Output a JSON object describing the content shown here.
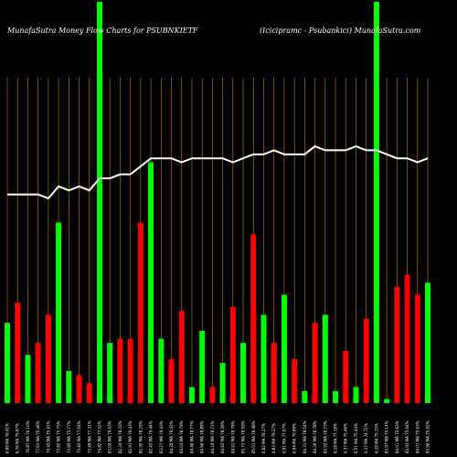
{
  "chart_data": {
    "type": "bar",
    "title_left": "MunafaSutra  Money Flow  Charts for PSUBNKIETF",
    "title_right": "(Icicipramc -  Psubankici) MunafaSutra.com",
    "colors": {
      "background": "#000000",
      "grid": "#c87f0a",
      "up": "#00ff00",
      "down": "#ff0000",
      "line": "#ffffff",
      "text": "#ffffff"
    },
    "ylim": [
      0,
      100
    ],
    "categories": [
      "6.89 MA 76.41%",
      "6.76 MA 75.87%",
      "76.87 MA 76.10%",
      "77.61 MA 75.46%",
      "74.45 MA 75.41%",
      "73.82 MA 75.75%",
      "73.95 MA 75.77%",
      "73.83 MA 77.54%",
      "73.49 MA 77.31%",
      "74.82 MA 77.52%",
      "83.04 MA 79.43%",
      "82.34 MA 78.33%",
      "82.91 MA 79.43%",
      "82.90 MA 78.29%",
      "82.43 MA 79.44%",
      "83.27 MA 79.43%",
      "84.25 MA 79.42%",
      "84.03 MA 78.79%",
      "84.46 MA 78.77%",
      "84.66 MA 78.89%",
      "84.16 MA 78.71%",
      "84.63 MA 78.39%",
      "84.61 MA 78.79%",
      "85.73 MA 78.59%",
      "85.01 MA 78.48%",
      "6.82 MA 78.27%",
      "6.83 MA 79.27%",
      "6.91 MA 77.67%",
      "6.94 MA 79.89%",
      "84.31 MA 78.54%",
      "84.26 MA 78.78%",
      "83.93 MA 78.73%",
      "6.28 MA 77.19%",
      "6.37 MA 75.46%",
      "6.51 MA 75.44%",
      "6.37 MA 74.71%",
      "6.39 MA 75.15%",
      "83.97 MA 75.14%",
      "84.01 MA 75.63%",
      "83.93 MA 75.64%",
      "84.01 MA 75.63%",
      "83.96 MA 75.62%"
    ],
    "series": [
      {
        "colors": [
          "g",
          "r",
          "g",
          "r",
          "r",
          "g",
          "g",
          "r",
          "r",
          "g",
          "r",
          "r",
          "r",
          "g",
          "g",
          "r",
          "r",
          "g",
          "g",
          "r",
          "g",
          "r",
          "g",
          "r",
          "g",
          "r",
          "g",
          "g",
          "g",
          "r",
          "r",
          "g",
          "g",
          "g",
          "g",
          "g",
          "g",
          "g",
          "g",
          "g",
          "g",
          "g"
        ],
        "values": [
          20,
          25,
          12,
          12,
          22,
          45,
          6,
          7,
          7,
          100,
          19,
          19,
          20,
          45,
          73,
          17,
          12,
          24,
          4,
          16,
          4,
          11,
          17,
          45,
          21,
          15,
          13,
          18,
          11,
          19,
          4,
          4,
          19,
          20,
          26,
          7,
          100,
          2,
          29,
          29,
          32,
          31
        ]
      }
    ],
    "bar_colors": [
      "g",
      "r",
      "g",
      "r",
      "r",
      "g",
      "g",
      "r",
      "r",
      "g",
      "g",
      "r",
      "r",
      "r",
      "g",
      "g",
      "r",
      "r",
      "g",
      "g",
      "r",
      "g",
      "r",
      "g",
      "r",
      "g",
      "r",
      "g",
      "r",
      "g",
      "r",
      "g",
      "g",
      "r",
      "g",
      "r",
      "g",
      "g",
      "r",
      "r",
      "r",
      "g"
    ],
    "bar_values": [
      20,
      25,
      12,
      15,
      22,
      45,
      8,
      7,
      5,
      100,
      15,
      16,
      16,
      45,
      60,
      16,
      11,
      23,
      4,
      18,
      4,
      10,
      24,
      15,
      42,
      22,
      15,
      27,
      11,
      3,
      20,
      22,
      3,
      13,
      4,
      21,
      102,
      1,
      29,
      32,
      27,
      30
    ],
    "line_values": [
      52,
      52,
      52,
      52,
      51,
      54,
      53,
      54,
      53,
      56,
      56,
      57,
      57,
      59,
      61,
      61,
      61,
      60,
      61,
      61,
      61,
      61,
      60,
      61,
      62,
      62,
      63,
      62,
      62,
      62,
      64,
      63,
      63,
      63,
      64,
      63,
      63,
      62,
      61,
      61,
      60,
      61
    ]
  }
}
